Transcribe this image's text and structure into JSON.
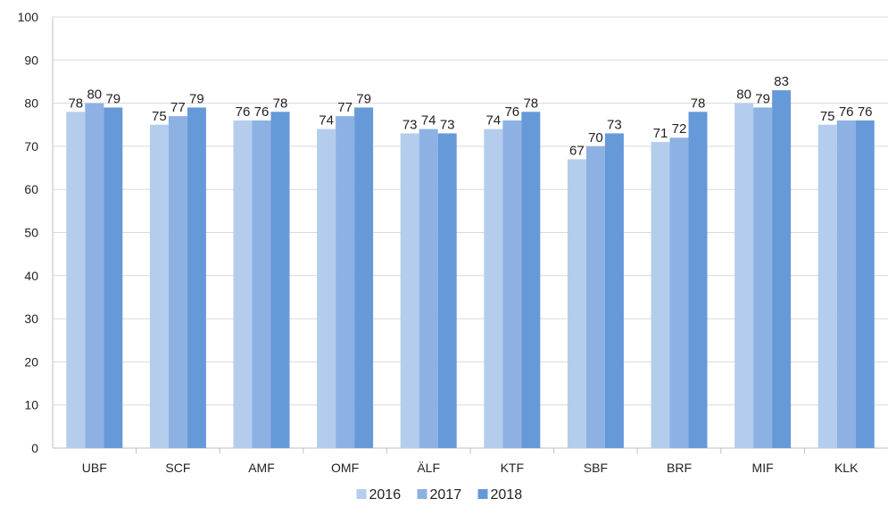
{
  "chart_data": {
    "type": "bar",
    "categories": [
      "UBF",
      "SCF",
      "AMF",
      "OMF",
      "ÄLF",
      "KTF",
      "SBF",
      "BRF",
      "MIF",
      "KLK"
    ],
    "series": [
      {
        "name": "2016",
        "color": "#b4cdec",
        "values": [
          78,
          75,
          76,
          74,
          73,
          74,
          67,
          71,
          80,
          75
        ]
      },
      {
        "name": "2017",
        "color": "#8db1e3",
        "values": [
          80,
          77,
          76,
          77,
          74,
          76,
          70,
          72,
          79,
          76
        ]
      },
      {
        "name": "2018",
        "color": "#6699d8",
        "values": [
          79,
          79,
          78,
          79,
          73,
          78,
          73,
          78,
          83,
          76
        ]
      }
    ],
    "ylim": [
      0,
      100
    ],
    "yticks": [
      0,
      10,
      20,
      30,
      40,
      50,
      60,
      70,
      80,
      90,
      100
    ],
    "grid": true,
    "legend": "bottom",
    "title": "",
    "xlabel": "",
    "ylabel": ""
  }
}
